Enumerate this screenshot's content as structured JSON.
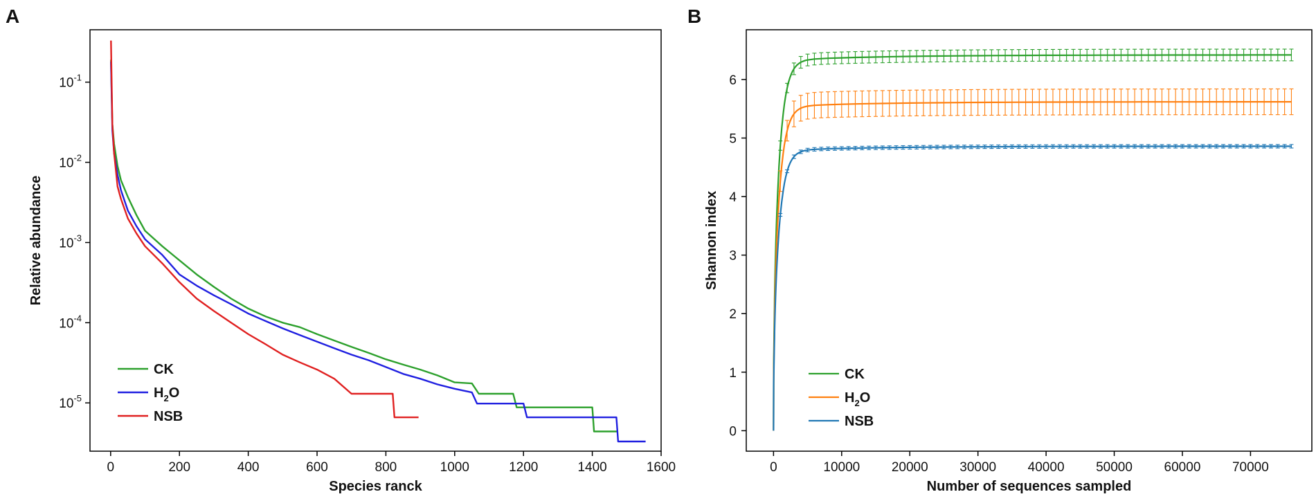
{
  "figure": {
    "panels": [
      "A",
      "B"
    ]
  },
  "chart_data": [
    {
      "type": "line",
      "panel": "A",
      "title": "",
      "xlabel": "Species ranck",
      "ylabel": "Relative abundance",
      "yscale": "log",
      "xlim": [
        -60,
        1600
      ],
      "ylim": [
        2.5e-06,
        0.45
      ],
      "x_ticks": [
        0,
        200,
        400,
        600,
        800,
        1000,
        1200,
        1400,
        1600
      ],
      "x_tick_labels": [
        "0",
        "200",
        "400",
        "600",
        "800",
        "1000",
        "1200",
        "1400",
        "1600"
      ],
      "y_ticks": [
        1e-05,
        0.0001,
        0.001,
        0.01,
        0.1
      ],
      "y_tick_labels": [
        {
          "base": "10",
          "exp": "-5"
        },
        {
          "base": "10",
          "exp": "-4"
        },
        {
          "base": "10",
          "exp": "-3"
        },
        {
          "base": "10",
          "exp": "-2"
        },
        {
          "base": "10",
          "exp": "-1"
        }
      ],
      "legend_position": "bottom-left",
      "series": [
        {
          "name": "CK",
          "label_main": "CK",
          "label_sub": "",
          "label_rest": "",
          "color": "#2ca02c",
          "x": [
            1,
            5,
            10,
            20,
            30,
            50,
            75,
            100,
            150,
            200,
            250,
            300,
            350,
            400,
            450,
            500,
            550,
            600,
            650,
            700,
            750,
            800,
            850,
            900,
            950,
            1000,
            1050,
            1070,
            1100,
            1150,
            1170,
            1180,
            1250,
            1300,
            1400,
            1405,
            1450,
            1475
          ],
          "y": [
            0.19,
            0.03,
            0.017,
            0.009,
            0.006,
            0.0037,
            0.0022,
            0.0014,
            0.0009,
            0.0006,
            0.0004,
            0.00028,
            0.0002,
            0.00015,
            0.00012,
            0.0001,
            8.8e-05,
            7.2e-05,
            6e-05,
            5e-05,
            4.2e-05,
            3.5e-05,
            3e-05,
            2.6e-05,
            2.2e-05,
            1.8e-05,
            1.75e-05,
            1.3e-05,
            1.3e-05,
            1.3e-05,
            1.3e-05,
            8.8e-06,
            8.8e-06,
            8.8e-06,
            8.8e-06,
            4.4e-06,
            4.4e-06,
            4.4e-06
          ]
        },
        {
          "name": "H2O",
          "label_main": "H",
          "label_sub": "2",
          "label_rest": "O",
          "color": "#1f1fe0",
          "x": [
            1,
            5,
            10,
            20,
            30,
            50,
            75,
            100,
            150,
            200,
            250,
            300,
            350,
            400,
            450,
            500,
            550,
            600,
            650,
            700,
            750,
            800,
            850,
            900,
            950,
            1000,
            1050,
            1065,
            1100,
            1200,
            1210,
            1300,
            1400,
            1470,
            1475,
            1500,
            1555
          ],
          "y": [
            0.18,
            0.025,
            0.013,
            0.007,
            0.0045,
            0.0025,
            0.0016,
            0.0011,
            0.0007,
            0.0004,
            0.00029,
            0.00022,
            0.00017,
            0.00013,
            0.000105,
            8.5e-05,
            7e-05,
            5.8e-05,
            4.8e-05,
            4e-05,
            3.4e-05,
            2.8e-05,
            2.3e-05,
            2e-05,
            1.7e-05,
            1.5e-05,
            1.35e-05,
            9.8e-06,
            9.8e-06,
            9.8e-06,
            6.6e-06,
            6.6e-06,
            6.6e-06,
            6.6e-06,
            3.3e-06,
            3.3e-06,
            3.3e-06
          ]
        },
        {
          "name": "NSB",
          "label_main": "NSB",
          "label_sub": "",
          "label_rest": "",
          "color": "#e02020",
          "x": [
            1,
            5,
            10,
            20,
            30,
            50,
            75,
            100,
            150,
            200,
            250,
            300,
            350,
            400,
            450,
            500,
            550,
            600,
            650,
            700,
            750,
            800,
            820,
            825,
            860,
            895
          ],
          "y": [
            0.33,
            0.03,
            0.013,
            0.005,
            0.0035,
            0.002,
            0.0013,
            0.0009,
            0.00055,
            0.00032,
            0.0002,
            0.00014,
            0.0001,
            7.2e-05,
            5.4e-05,
            4e-05,
            3.2e-05,
            2.6e-05,
            2e-05,
            1.3e-05,
            1.3e-05,
            1.3e-05,
            1.3e-05,
            6.6e-06,
            6.6e-06,
            6.6e-06
          ]
        }
      ]
    },
    {
      "type": "line",
      "panel": "B",
      "title": "",
      "xlabel": "Number of sequences sampled",
      "ylabel": "Shannon index",
      "xlim": [
        -4000,
        79000
      ],
      "ylim": [
        -0.35,
        6.85
      ],
      "x_ticks": [
        0,
        10000,
        20000,
        30000,
        40000,
        50000,
        60000,
        70000
      ],
      "x_tick_labels": [
        "0",
        "10000",
        "20000",
        "30000",
        "40000",
        "50000",
        "60000",
        "70000"
      ],
      "y_ticks": [
        0,
        1,
        2,
        3,
        4,
        5,
        6
      ],
      "y_tick_labels": [
        "0",
        "1",
        "2",
        "3",
        "4",
        "5",
        "6"
      ],
      "legend_position": "bottom-left",
      "error_bars": true,
      "series": [
        {
          "name": "CK",
          "label_main": "CK",
          "label_sub": "",
          "label_rest": "",
          "color": "#2ca02c",
          "asymptote": 6.42,
          "error": 0.1
        },
        {
          "name": "H2O",
          "label_main": "H",
          "label_sub": "2",
          "label_rest": "O",
          "color": "#ff7f0e",
          "asymptote": 5.62,
          "error": 0.22
        },
        {
          "name": "NSB",
          "label_main": "NSB",
          "label_sub": "",
          "label_rest": "",
          "color": "#1f77b4",
          "asymptote": 4.86,
          "error": 0.03
        }
      ]
    }
  ]
}
